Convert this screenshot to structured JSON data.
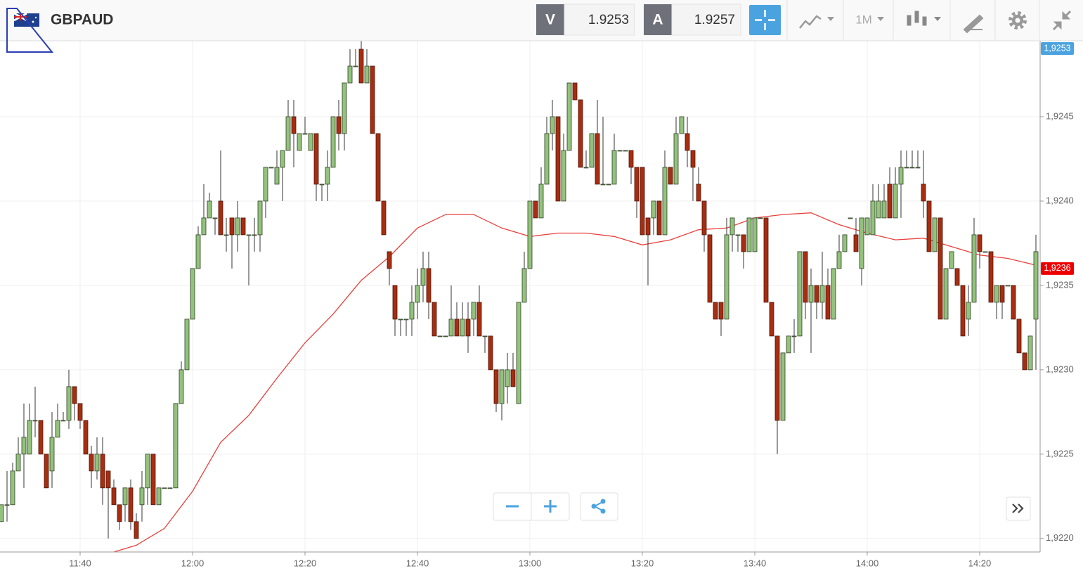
{
  "header": {
    "symbol": "GBPAUD",
    "bid_label": "V",
    "bid": 1.9253,
    "ask_label": "A",
    "ask": 1.9257,
    "timeframe": "1M"
  },
  "chart_data": {
    "type": "candlestick",
    "x": [
      "11:26",
      "11:27",
      "11:28",
      "11:29",
      "11:30",
      "11:31",
      "11:32",
      "11:33",
      "11:34",
      "11:35",
      "11:36",
      "11:37",
      "11:38",
      "11:39",
      "11:40",
      "11:41",
      "11:42",
      "11:43",
      "11:44",
      "11:45",
      "11:46",
      "11:47",
      "11:48",
      "11:49",
      "11:50",
      "11:51",
      "11:52",
      "11:53",
      "11:54",
      "11:55",
      "11:56",
      "11:57",
      "11:58",
      "11:59",
      "12:00",
      "12:01",
      "12:02",
      "12:03",
      "12:04",
      "12:05",
      "12:06",
      "12:07",
      "12:08",
      "12:09",
      "12:10",
      "12:11",
      "12:12",
      "12:13",
      "12:14",
      "12:15",
      "12:16",
      "12:17",
      "12:18",
      "12:19",
      "12:20",
      "12:21",
      "12:22",
      "12:23",
      "12:24",
      "12:25",
      "12:26",
      "12:27",
      "12:28",
      "12:29",
      "12:30",
      "12:31",
      "12:32",
      "12:33",
      "12:34",
      "12:35",
      "12:36",
      "12:37",
      "12:38",
      "12:39",
      "12:40",
      "12:41",
      "12:42",
      "12:43",
      "12:44",
      "12:45",
      "12:46",
      "12:47",
      "12:48",
      "12:49",
      "12:50",
      "12:51",
      "12:52",
      "12:53",
      "12:54",
      "12:55",
      "12:56",
      "12:57",
      "12:58",
      "12:59",
      "13:00",
      "13:01",
      "13:02",
      "13:03",
      "13:04",
      "13:05",
      "13:06",
      "13:07",
      "13:08",
      "13:09",
      "13:10",
      "13:11",
      "13:12",
      "13:13",
      "13:14",
      "13:15",
      "13:16",
      "13:17",
      "13:18",
      "13:19",
      "13:20",
      "13:21",
      "13:22",
      "13:23",
      "13:24",
      "13:25",
      "13:26",
      "13:27",
      "13:28",
      "13:29",
      "13:30",
      "13:31",
      "13:32",
      "13:33",
      "13:34",
      "13:35",
      "13:36",
      "13:37",
      "13:38",
      "13:39",
      "13:40",
      "13:41",
      "13:42",
      "13:43",
      "13:44",
      "13:45",
      "13:46",
      "13:47",
      "13:48",
      "13:49",
      "13:50",
      "13:51",
      "13:52",
      "13:53",
      "13:54",
      "13:55",
      "13:56",
      "13:57",
      "13:58",
      "13:59",
      "14:00",
      "14:01",
      "14:02",
      "14:03",
      "14:04",
      "14:05",
      "14:06",
      "14:07",
      "14:08",
      "14:09",
      "14:10",
      "14:11",
      "14:12",
      "14:13",
      "14:14",
      "14:15",
      "14:16",
      "14:17",
      "14:18",
      "14:19",
      "14:20",
      "14:21",
      "14:22",
      "14:23",
      "14:24",
      "14:25",
      "14:26",
      "14:27",
      "14:28",
      "14:29",
      "14:30"
    ],
    "open": [
      1.9221,
      1.9222,
      1.9222,
      1.9224,
      1.9225,
      1.9225,
      1.9227,
      1.9227,
      1.9225,
      1.9224,
      1.9226,
      1.9227,
      1.9227,
      1.9229,
      1.9228,
      1.9227,
      1.9225,
      1.9224,
      1.9225,
      1.9224,
      1.9223,
      1.9222,
      1.9222,
      1.9223,
      1.9221,
      1.9222,
      1.9223,
      1.9225,
      1.9222,
      1.9223,
      1.9223,
      1.9223,
      1.9228,
      1.923,
      1.9233,
      1.9236,
      1.9238,
      1.9239,
      1.9239,
      1.924,
      1.9238,
      1.9239,
      1.9238,
      1.9239,
      1.9238,
      1.9238,
      1.9238,
      1.924,
      1.9242,
      1.9241,
      1.9242,
      1.9243,
      1.9245,
      1.9243,
      1.9244,
      1.9243,
      1.9244,
      1.9241,
      1.9241,
      1.9242,
      1.9245,
      1.9244,
      1.9247,
      1.9248,
      1.9249,
      1.9247,
      1.9248,
      1.9244,
      1.924,
      1.9237,
      1.9235,
      1.9233,
      1.9233,
      1.9233,
      1.9234,
      1.9235,
      1.9236,
      1.9234,
      1.9232,
      1.9232,
      1.9232,
      1.9233,
      1.9232,
      1.9233,
      1.9233,
      1.9234,
      1.9232,
      1.9232,
      1.923,
      1.9228,
      1.9229,
      1.923,
      1.9228,
      1.9234,
      1.9236,
      1.924,
      1.9239,
      1.9241,
      1.9244,
      1.9245,
      1.924,
      1.9243,
      1.9247,
      1.9246,
      1.9242,
      1.9242,
      1.9244,
      1.9241,
      1.9241,
      1.9241,
      1.9243,
      1.9243,
      1.9243,
      1.9242,
      1.9242,
      1.9239,
      1.9239,
      1.924,
      1.9238,
      1.9242,
      1.9241,
      1.9244,
      1.9244,
      1.9243,
      1.9241,
      1.924,
      1.9238,
      1.9234,
      1.9234,
      1.9233,
      1.9238,
      1.9238,
      1.9238,
      1.9237,
      1.9237,
      1.9239,
      1.9239,
      1.9234,
      1.9232,
      1.9227,
      1.9231,
      1.9232,
      1.9232,
      1.9237,
      1.9234,
      1.9235,
      1.9234,
      1.9235,
      1.9233,
      1.9236,
      1.9237,
      1.9239,
      1.9238,
      1.9236,
      1.9238,
      1.9238,
      1.9239,
      1.9239,
      1.9241,
      1.9239,
      1.9241,
      1.9242,
      1.9242,
      1.9242,
      1.9241,
      1.924,
      1.9237,
      1.9239,
      1.9233,
      1.9236,
      1.9236,
      1.9235,
      1.9233,
      1.9234,
      1.9238,
      1.9237,
      1.9237,
      1.9234,
      1.9235,
      1.9235,
      1.9235,
      1.9233,
      1.9231,
      1.923,
      1.9233
    ],
    "high": [
      1.9222,
      1.9224,
      1.92245,
      1.9226,
      1.9228,
      1.9228,
      1.9229,
      1.9227,
      1.9225,
      1.92275,
      1.9228,
      1.92275,
      1.923,
      1.9229,
      1.9228,
      1.9227,
      1.92255,
      1.9226,
      1.9226,
      1.9224,
      1.92235,
      1.9222,
      1.9223,
      1.92235,
      1.92215,
      1.9224,
      1.9225,
      1.9225,
      1.9223,
      1.9223,
      1.9223,
      1.9228,
      1.92305,
      1.9233,
      1.9236,
      1.92385,
      1.9241,
      1.92405,
      1.9239,
      1.9243,
      1.9239,
      1.9239,
      1.924,
      1.9239,
      1.9238,
      1.9239,
      1.924,
      1.9242,
      1.9242,
      1.9243,
      1.9243,
      1.9246,
      1.9246,
      1.9244,
      1.9245,
      1.9244,
      1.9244,
      1.9241,
      1.9243,
      1.9245,
      1.9246,
      1.9247,
      1.9249,
      1.9249,
      1.92495,
      1.9249,
      1.9248,
      1.9244,
      1.924,
      1.9237,
      1.9235,
      1.9233,
      1.9233,
      1.9235,
      1.9236,
      1.9237,
      1.9237,
      1.9234,
      1.9232,
      1.9232,
      1.9235,
      1.9234,
      1.9234,
      1.9234,
      1.9234,
      1.9235,
      1.9232,
      1.9232,
      1.923,
      1.923,
      1.9231,
      1.9231,
      1.9234,
      1.9237,
      1.924,
      1.924,
      1.9242,
      1.9245,
      1.9246,
      1.9245,
      1.9244,
      1.9247,
      1.9247,
      1.9246,
      1.9243,
      1.9244,
      1.9246,
      1.9245,
      1.9241,
      1.9244,
      1.9243,
      1.9243,
      1.9243,
      1.9242,
      1.9242,
      1.9239,
      1.924,
      1.924,
      1.9243,
      1.9242,
      1.9245,
      1.9245,
      1.9245,
      1.9243,
      1.9242,
      1.924,
      1.9238,
      1.9234,
      1.9234,
      1.9239,
      1.9239,
      1.9238,
      1.9238,
      1.9239,
      1.9239,
      1.9239,
      1.9239,
      1.9234,
      1.9232,
      1.9231,
      1.9232,
      1.9233,
      1.9237,
      1.9237,
      1.9236,
      1.9235,
      1.9237,
      1.9236,
      1.9236,
      1.9238,
      1.9238,
      1.9239,
      1.9239,
      1.9239,
      1.9239,
      1.9241,
      1.9241,
      1.9241,
      1.9242,
      1.9242,
      1.9243,
      1.9243,
      1.9243,
      1.9243,
      1.9243,
      1.924,
      1.9239,
      1.9239,
      1.9236,
      1.9237,
      1.9236,
      1.9235,
      1.9235,
      1.9239,
      1.9238,
      1.9237,
      1.9237,
      1.9235,
      1.9235,
      1.9235,
      1.9235,
      1.9233,
      1.9231,
      1.9232,
      1.9238
    ],
    "low": [
      1.9221,
      1.9221,
      1.9222,
      1.9224,
      1.9223,
      1.9225,
      1.9226,
      1.9225,
      1.9223,
      1.9223,
      1.9226,
      1.9227,
      1.92265,
      1.9227,
      1.92265,
      1.9225,
      1.9223,
      1.92235,
      1.9222,
      1.922,
      1.9222,
      1.92205,
      1.9221,
      1.92205,
      1.922,
      1.9221,
      1.9222,
      1.9222,
      1.9222,
      1.9223,
      1.9223,
      1.9223,
      1.9228,
      1.923,
      1.9233,
      1.9236,
      1.9238,
      1.9239,
      1.9238,
      1.9238,
      1.9237,
      1.9236,
      1.9237,
      1.9238,
      1.9235,
      1.9237,
      1.9237,
      1.9239,
      1.9242,
      1.9241,
      1.924,
      1.9243,
      1.9242,
      1.9243,
      1.9244,
      1.9243,
      1.924,
      1.924,
      1.924,
      1.9242,
      1.9243,
      1.9243,
      1.9247,
      1.9248,
      1.9247,
      1.9247,
      1.9244,
      1.924,
      1.9238,
      1.9235,
      1.9232,
      1.9232,
      1.9232,
      1.9232,
      1.9233,
      1.9234,
      1.9233,
      1.9232,
      1.9232,
      1.9232,
      1.9232,
      1.9232,
      1.9232,
      1.9231,
      1.9232,
      1.9232,
      1.9231,
      1.923,
      1.92275,
      1.9227,
      1.9228,
      1.9229,
      1.9228,
      1.9234,
      1.9236,
      1.9239,
      1.9239,
      1.9241,
      1.9243,
      1.924,
      1.924,
      1.9243,
      1.9246,
      1.9242,
      1.9242,
      1.9242,
      1.9241,
      1.9241,
      1.9241,
      1.9241,
      1.9243,
      1.9243,
      1.9241,
      1.9239,
      1.9238,
      1.9235,
      1.9238,
      1.9238,
      1.9238,
      1.9241,
      1.9241,
      1.9244,
      1.9242,
      1.924,
      1.924,
      1.9237,
      1.9234,
      1.9233,
      1.9232,
      1.9233,
      1.9237,
      1.9237,
      1.9236,
      1.9237,
      1.9237,
      1.9239,
      1.9234,
      1.9232,
      1.9225,
      1.9227,
      1.9231,
      1.9231,
      1.9232,
      1.9233,
      1.9231,
      1.9233,
      1.9233,
      1.9233,
      1.9233,
      1.9236,
      1.9237,
      1.9239,
      1.9237,
      1.9235,
      1.9238,
      1.9238,
      1.9239,
      1.9239,
      1.9239,
      1.9239,
      1.9239,
      1.9242,
      1.9242,
      1.9242,
      1.9239,
      1.9237,
      1.9237,
      1.9233,
      1.9233,
      1.9236,
      1.9235,
      1.9232,
      1.9232,
      1.9234,
      1.9236,
      1.9237,
      1.9234,
      1.9233,
      1.9233,
      1.9235,
      1.9233,
      1.9231,
      1.923,
      1.923,
      1.923
    ],
    "close": [
      1.9222,
      1.9222,
      1.9224,
      1.9225,
      1.9226,
      1.9227,
      1.9227,
      1.9225,
      1.9223,
      1.9226,
      1.9227,
      1.9227,
      1.9229,
      1.9228,
      1.9227,
      1.9225,
      1.9224,
      1.9225,
      1.9223,
      1.9223,
      1.9222,
      1.9221,
      1.9223,
      1.9221,
      1.922,
      1.9223,
      1.9225,
      1.9222,
      1.9223,
      1.9223,
      1.9223,
      1.9228,
      1.923,
      1.9233,
      1.9236,
      1.9238,
      1.9239,
      1.924,
      1.9239,
      1.9238,
      1.9238,
      1.9238,
      1.9239,
      1.9238,
      1.9238,
      1.9238,
      1.924,
      1.9242,
      1.9242,
      1.9242,
      1.9243,
      1.9245,
      1.9244,
      1.9244,
      1.9244,
      1.9244,
      1.9241,
      1.9241,
      1.9242,
      1.9245,
      1.9244,
      1.9247,
      1.9248,
      1.9248,
      1.9247,
      1.9248,
      1.9244,
      1.924,
      1.9238,
      1.9236,
      1.9233,
      1.9233,
      1.9233,
      1.9234,
      1.9235,
      1.9236,
      1.9234,
      1.9232,
      1.9232,
      1.9232,
      1.9233,
      1.9232,
      1.9233,
      1.9232,
      1.9234,
      1.9232,
      1.9232,
      1.923,
      1.9228,
      1.923,
      1.923,
      1.9229,
      1.9234,
      1.9236,
      1.924,
      1.9239,
      1.9241,
      1.9244,
      1.9245,
      1.924,
      1.9243,
      1.9247,
      1.9246,
      1.9242,
      1.9242,
      1.9244,
      1.9241,
      1.9241,
      1.9241,
      1.9243,
      1.9243,
      1.9243,
      1.9242,
      1.924,
      1.9238,
      1.9238,
      1.924,
      1.9238,
      1.9242,
      1.9241,
      1.9244,
      1.9245,
      1.9243,
      1.9242,
      1.924,
      1.9238,
      1.9234,
      1.9233,
      1.9233,
      1.9238,
      1.9239,
      1.9238,
      1.9237,
      1.9239,
      1.9239,
      1.9239,
      1.9234,
      1.9232,
      1.9227,
      1.9231,
      1.9232,
      1.9232,
      1.9237,
      1.9234,
      1.9235,
      1.9234,
      1.9235,
      1.9233,
      1.9236,
      1.9237,
      1.9238,
      1.9239,
      1.9237,
      1.9239,
      1.9239,
      1.924,
      1.924,
      1.924,
      1.9239,
      1.9241,
      1.9242,
      1.9242,
      1.9242,
      1.9242,
      1.924,
      1.9237,
      1.9239,
      1.9233,
      1.9236,
      1.9237,
      1.9235,
      1.9232,
      1.9234,
      1.9238,
      1.9237,
      1.9237,
      1.9234,
      1.9235,
      1.9234,
      1.9235,
      1.9233,
      1.9231,
      1.923,
      1.9232,
      1.9237
    ],
    "up_color": "#93c27c",
    "down_color": "#a82d10",
    "ma": {
      "color": "#e8413c",
      "x": [
        "11:46",
        "11:50",
        "11:55",
        "12:00",
        "12:05",
        "12:10",
        "12:15",
        "12:20",
        "12:25",
        "12:30",
        "12:35",
        "12:40",
        "12:45",
        "12:50",
        "12:55",
        "13:00",
        "13:05",
        "13:10",
        "13:15",
        "13:20",
        "13:25",
        "13:30",
        "13:35",
        "13:40",
        "13:45",
        "13:50",
        "13:55",
        "14:00",
        "14:05",
        "14:10",
        "14:15",
        "14:20",
        "14:25",
        "14:30"
      ],
      "values": [
        1.92192,
        1.92196,
        1.92206,
        1.92228,
        1.92257,
        1.92273,
        1.92295,
        1.92316,
        1.92333,
        1.92353,
        1.92367,
        1.92384,
        1.92392,
        1.92392,
        1.92384,
        1.92379,
        1.92381,
        1.92381,
        1.92379,
        1.92374,
        1.92377,
        1.92383,
        1.92384,
        1.9239,
        1.92392,
        1.92393,
        1.92386,
        1.92381,
        1.92377,
        1.92378,
        1.92373,
        1.92368,
        1.92366,
        1.92362
      ]
    },
    "xlim": [
      "11:26",
      "14:31"
    ],
    "xticks": [
      "11:40",
      "12:00",
      "12:20",
      "12:40",
      "13:00",
      "13:20",
      "13:40",
      "14:00",
      "14:20"
    ],
    "ylim": [
      1.92192,
      1.92495
    ],
    "yticks": [
      {
        "value": 1.922,
        "label": "1,9220"
      },
      {
        "value": 1.9225,
        "label": "1,9225"
      },
      {
        "value": 1.923,
        "label": "1,9230"
      },
      {
        "value": 1.9235,
        "label": "1,9235"
      },
      {
        "value": 1.924,
        "label": "1,9240"
      },
      {
        "value": 1.9245,
        "label": "1,9245"
      }
    ],
    "grid": true,
    "bid_tag": {
      "value": 1.9253,
      "label": "1,9253",
      "color": "#4aa3df"
    },
    "last_tag": {
      "value": 1.9236,
      "label": "1,9236",
      "color": "#ee0000"
    }
  }
}
